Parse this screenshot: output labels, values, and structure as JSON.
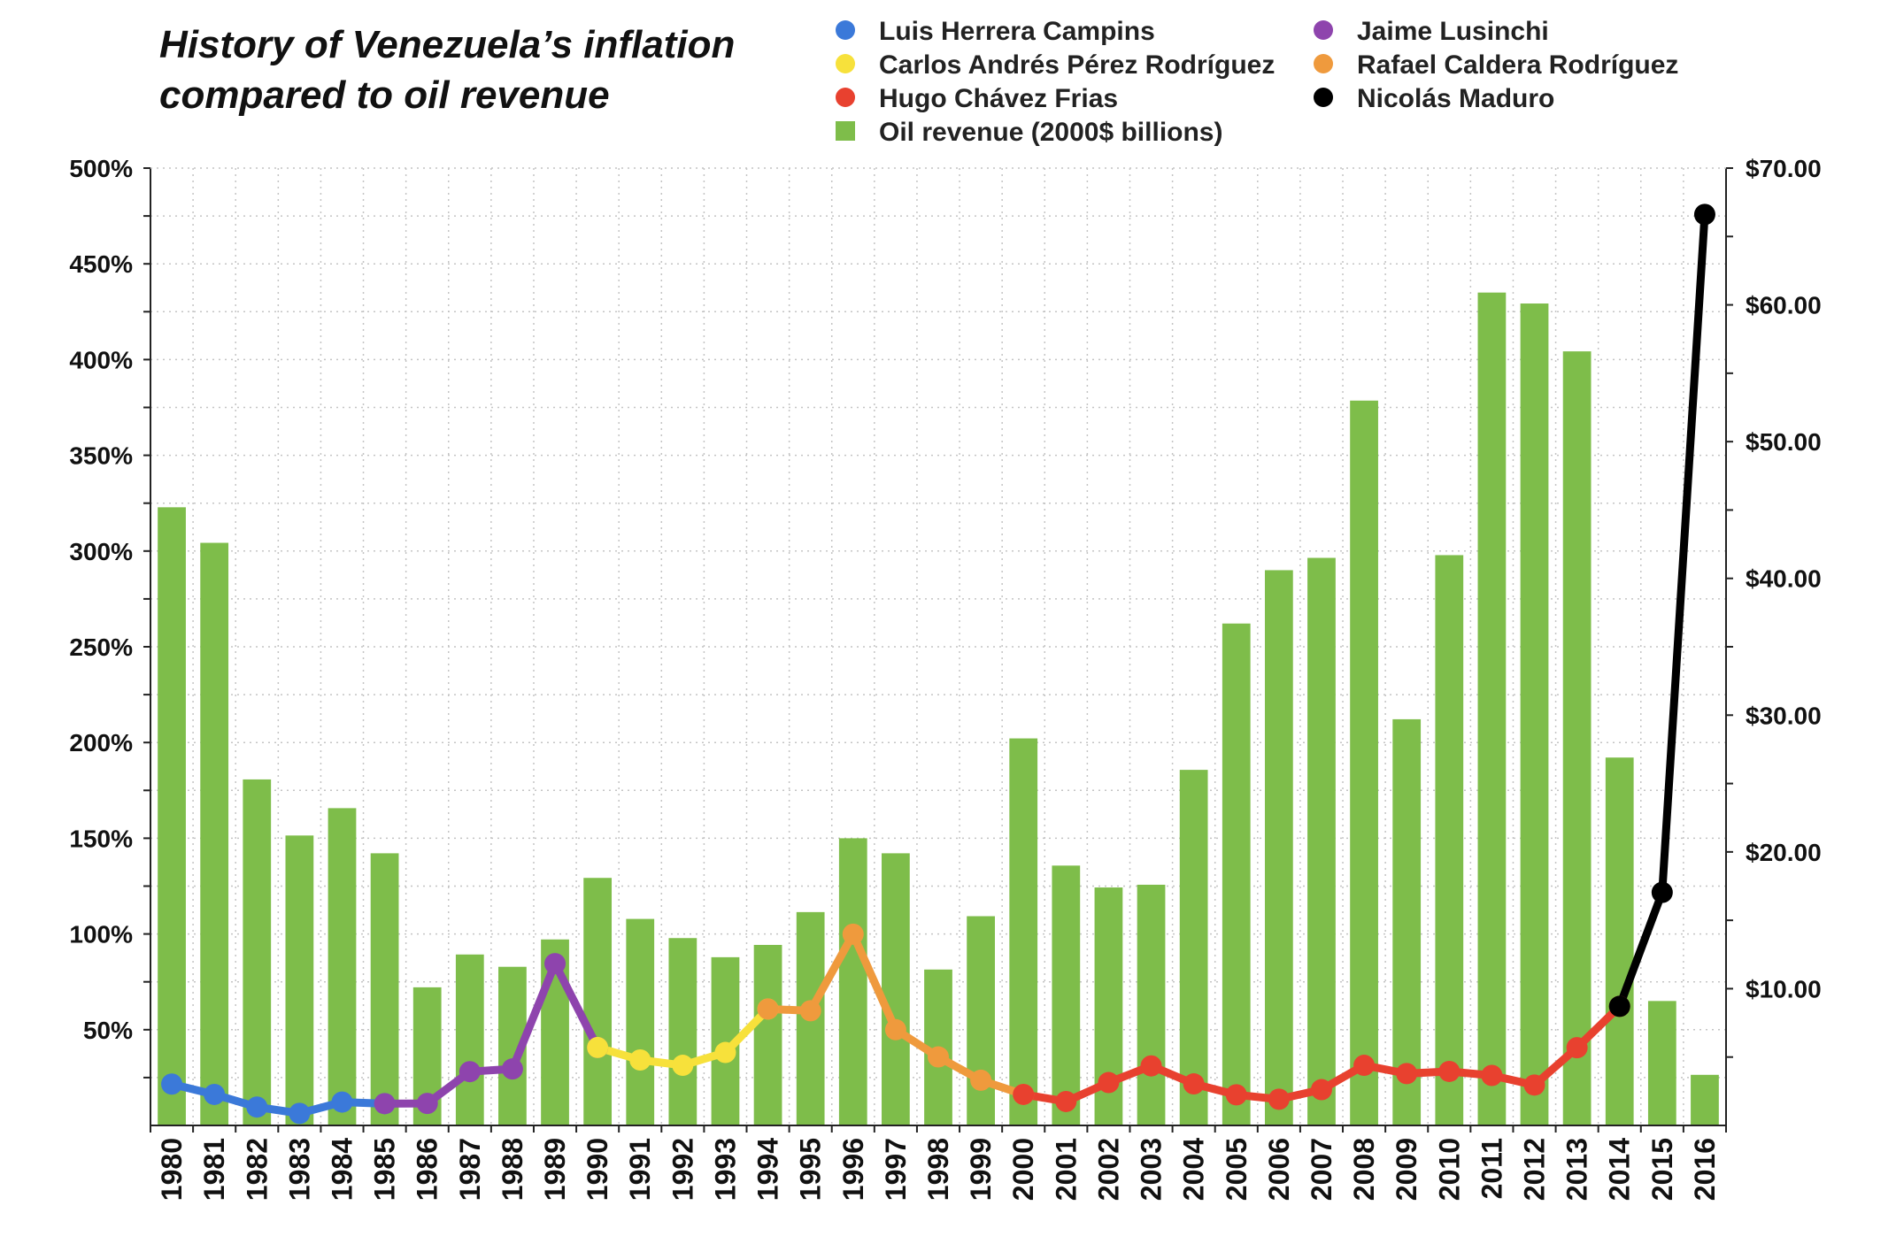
{
  "chart_data": {
    "type": "bar+line",
    "title_lines": [
      "History of Venezuela’s inflation",
      "compared to oil revenue"
    ],
    "categories": [
      "1980",
      "1981",
      "1982",
      "1983",
      "1984",
      "1985",
      "1986",
      "1987",
      "1988",
      "1989",
      "1990",
      "1991",
      "1992",
      "1993",
      "1994",
      "1995",
      "1996",
      "1997",
      "1998",
      "1999",
      "2000",
      "2001",
      "2002",
      "2003",
      "2004",
      "2005",
      "2006",
      "2007",
      "2008",
      "2009",
      "2010",
      "2011",
      "2012",
      "2013",
      "2014",
      "2015",
      "2016"
    ],
    "y_left": {
      "min": 0,
      "max": 500,
      "ticks": [
        50,
        100,
        150,
        200,
        250,
        300,
        350,
        400,
        450,
        500
      ],
      "tick_labels": [
        "50%",
        "100%",
        "150%",
        "200%",
        "250%",
        "300%",
        "350%",
        "400%",
        "450%",
        "500%"
      ]
    },
    "y_right": {
      "min": 0,
      "max": 70,
      "ticks": [
        10,
        20,
        30,
        40,
        50,
        60,
        70
      ],
      "tick_labels": [
        "$10.00",
        "$20.00",
        "$30.00",
        "$40.00",
        "$50.00",
        "$60.00",
        "$70.00"
      ]
    },
    "grid": true,
    "legend_position": "top",
    "bars": {
      "name": "Oil revenue (2000$ billions)",
      "axis": "right",
      "color": "#7ebd4a",
      "values": [
        45.2,
        42.6,
        25.3,
        21.2,
        23.2,
        19.9,
        10.1,
        12.5,
        11.6,
        13.6,
        18.1,
        15.1,
        13.7,
        12.3,
        13.2,
        15.6,
        21.0,
        19.9,
        11.4,
        15.3,
        28.3,
        19.0,
        17.4,
        17.6,
        26.0,
        36.7,
        40.6,
        41.5,
        53.0,
        29.7,
        41.7,
        60.9,
        60.1,
        56.6,
        26.9,
        9.1,
        3.7
      ]
    },
    "series": [
      {
        "name": "Luis Herrera Campins",
        "color": "#3b79d9",
        "x": [
          "1980",
          "1981",
          "1982",
          "1983",
          "1984",
          "1985"
        ],
        "values": [
          21.6,
          16.2,
          9.6,
          6.3,
          12.2,
          11.4
        ]
      },
      {
        "name": "Jaime Lusinchi",
        "color": "#8e44ad",
        "x": [
          "1985",
          "1986",
          "1987",
          "1988",
          "1989",
          "1990"
        ],
        "values": [
          11.4,
          11.5,
          28.1,
          29.5,
          84.5,
          40.7
        ]
      },
      {
        "name": "Carlos Andrés Pérez Rodríguez",
        "color": "#f7e13b",
        "x": [
          "1990",
          "1991",
          "1992",
          "1993",
          "1994"
        ],
        "values": [
          40.7,
          34.2,
          31.4,
          38.1,
          60.8
        ]
      },
      {
        "name": "Rafael Caldera Rodríguez",
        "color": "#ef9a3d",
        "x": [
          "1994",
          "1995",
          "1996",
          "1997",
          "1998",
          "1999",
          "2000"
        ],
        "values": [
          60.8,
          59.9,
          99.9,
          50.0,
          35.8,
          23.6,
          16.2
        ]
      },
      {
        "name": "Hugo Chávez Frias",
        "color": "#e8412f",
        "x": [
          "2000",
          "2001",
          "2002",
          "2003",
          "2004",
          "2005",
          "2006",
          "2007",
          "2008",
          "2009",
          "2010",
          "2011",
          "2012",
          "2013",
          "2014"
        ],
        "values": [
          16.2,
          12.5,
          22.4,
          31.1,
          21.7,
          16.0,
          13.7,
          18.7,
          31.4,
          27.1,
          28.2,
          26.1,
          21.1,
          40.6,
          62.2
        ]
      },
      {
        "name": "Nicolás Maduro",
        "color": "#000000",
        "x": [
          "2014",
          "2015",
          "2016"
        ],
        "values": [
          62.2,
          121.7,
          475.8
        ]
      }
    ]
  }
}
